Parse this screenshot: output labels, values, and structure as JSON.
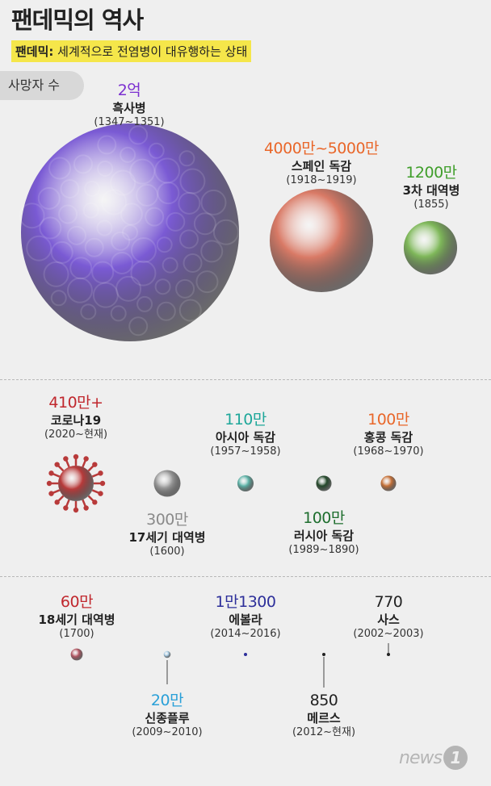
{
  "title": "팬데믹의 역사",
  "definition": {
    "term": "팬데믹:",
    "text": " 세계적으로 전염병이 대유행하는 상태"
  },
  "section_label": "사망자 수",
  "logo": {
    "text": "news",
    "mark": "1"
  },
  "colors": {
    "black_death": "#7a5ad4",
    "spanish_flu": "#d97a66",
    "cholera": "#7fb85a",
    "covid": "#b83a3a",
    "plague_17c": "#9a9a9a",
    "asian_flu": "#5fb3a8",
    "russian_flu": "#254a2c",
    "hk_flu": "#c8733a",
    "plague_18c": "#b55a66",
    "swine_flu": "#a9cde6",
    "ebola": "#2d2f9a"
  },
  "chart_data": {
    "type": "bubble",
    "unit_label": "사망자 수",
    "items": [
      {
        "id": "black-death",
        "value_label": "2억",
        "name": "흑사병",
        "period": "(1347~1351)",
        "deaths": 200000000,
        "value_color": "#7b2fd0"
      },
      {
        "id": "spanish-flu",
        "value_label": "4000만~5000만",
        "name": "스페인 독감",
        "period": "(1918~1919)",
        "deaths": 45000000,
        "value_color": "#e9672a"
      },
      {
        "id": "cholera",
        "value_label": "1200만",
        "name": "3차 대역병",
        "period": "(1855)",
        "deaths": 12000000,
        "value_color": "#3f9e2a"
      },
      {
        "id": "covid",
        "value_label": "410만+",
        "name": "코로나19",
        "period": "(2020~현재)",
        "deaths": 4100000,
        "value_color": "#c0272d"
      },
      {
        "id": "plague-17c",
        "value_label": "300만",
        "name": "17세기 대역병",
        "period": "(1600)",
        "deaths": 3000000,
        "value_color": "#8a8a8a"
      },
      {
        "id": "asian-flu",
        "value_label": "110만",
        "name": "아시아 독감",
        "period": "(1957~1958)",
        "deaths": 1100000,
        "value_color": "#1ea79a"
      },
      {
        "id": "russian-flu",
        "value_label": "100만",
        "name": "러시아 독감",
        "period": "(1989~1890)",
        "deaths": 1000000,
        "value_color": "#1e6e2e"
      },
      {
        "id": "hk-flu",
        "value_label": "100만",
        "name": "홍콩 독감",
        "period": "(1968~1970)",
        "deaths": 1000000,
        "value_color": "#e9672a"
      },
      {
        "id": "plague-18c",
        "value_label": "60만",
        "name": "18세기 대역병",
        "period": "(1700)",
        "deaths": 600000,
        "value_color": "#c0272d"
      },
      {
        "id": "swine-flu",
        "value_label": "20만",
        "name": "신종플루",
        "period": "(2009~2010)",
        "deaths": 200000,
        "value_color": "#2aa0d8"
      },
      {
        "id": "ebola",
        "value_label": "1만1300",
        "name": "에볼라",
        "period": "(2014~2016)",
        "deaths": 11300,
        "value_color": "#2d2f9a"
      },
      {
        "id": "mers",
        "value_label": "850",
        "name": "메르스",
        "period": "(2012~현재)",
        "deaths": 850,
        "value_color": "#222222"
      },
      {
        "id": "sars",
        "value_label": "770",
        "name": "사스",
        "period": "(2002~2003)",
        "deaths": 770,
        "value_color": "#222222"
      }
    ]
  }
}
